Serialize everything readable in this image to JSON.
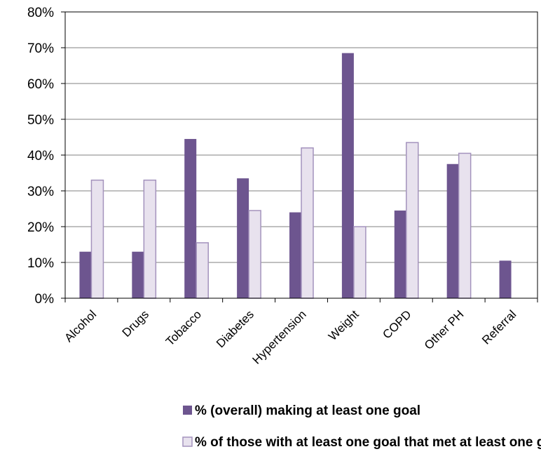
{
  "chart_data": {
    "type": "bar",
    "categories": [
      "Alcohol",
      "Drugs",
      "Tobacco",
      "Diabetes",
      "Hypertension",
      "Weight",
      "COPD",
      "Other PH",
      "Referral"
    ],
    "series": [
      {
        "name": "% (overall) making at least one goal",
        "values": [
          13,
          13,
          44.5,
          33.5,
          24,
          68.5,
          24.5,
          37.5,
          10.5
        ],
        "color": "#6d558f"
      },
      {
        "name": "% of those with at least one goal that met at least one goal",
        "values": [
          33,
          33,
          15.5,
          24.5,
          42,
          20,
          43.5,
          40.5,
          null
        ],
        "color": "#e8e2ee",
        "stroke": "#a493bd"
      }
    ],
    "yticks": [
      "0%",
      "10%",
      "20%",
      "30%",
      "40%",
      "50%",
      "60%",
      "70%",
      "80%"
    ],
    "ylim": [
      0,
      80
    ],
    "grid": true,
    "legend_position": "bottom-left"
  }
}
